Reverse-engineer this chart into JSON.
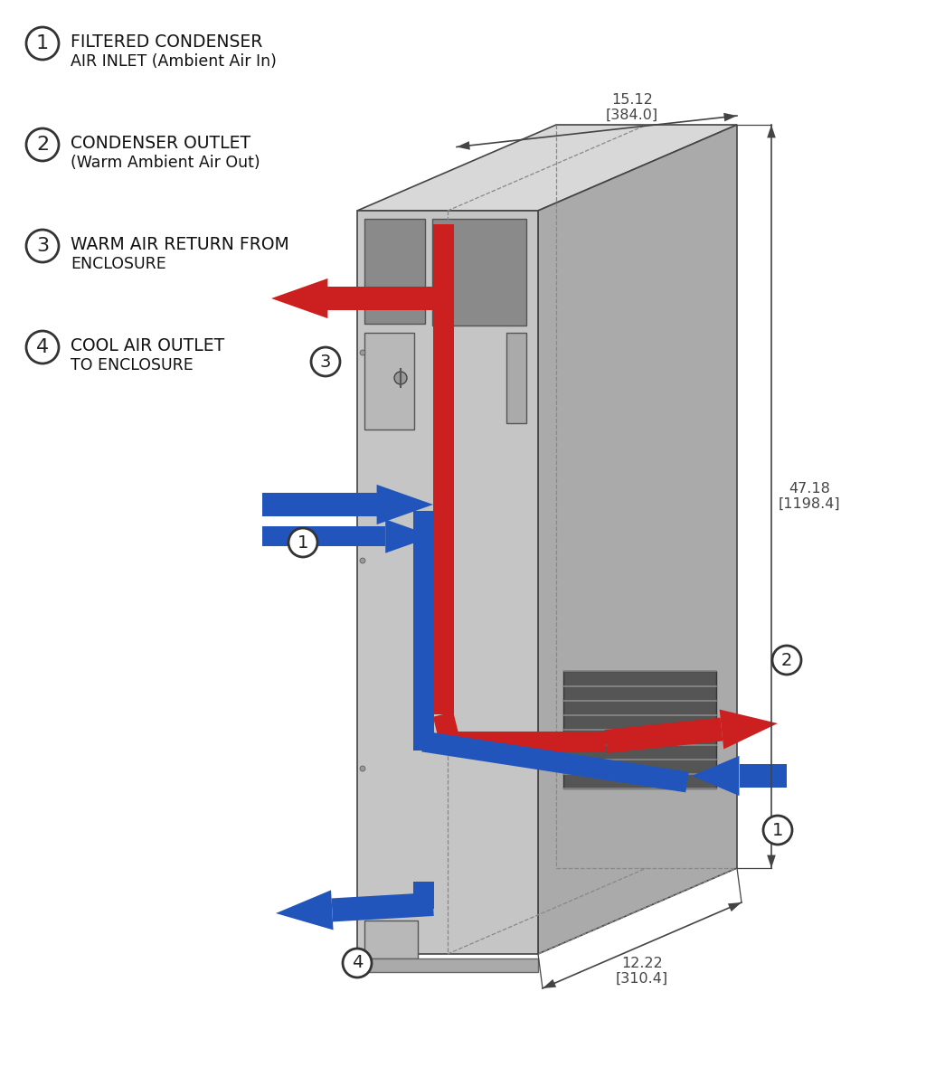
{
  "bg_color": "#ffffff",
  "text_color": "#222222",
  "legend": [
    {
      "num": "1",
      "line1": "FILTERED CONDENSER",
      "line2": "AIR INLET (Ambient Air In)"
    },
    {
      "num": "2",
      "line1": "CONDENSER OUTLET",
      "line2": "(Warm Ambient Air Out)"
    },
    {
      "num": "3",
      "line1": "WARM AIR RETURN FROM",
      "line2": "ENCLOSURE"
    },
    {
      "num": "4",
      "line1": "COOL AIR OUTLET",
      "line2": "TO ENCLOSURE"
    }
  ],
  "dim1": "15.12\n[384.0]",
  "dim2": "47.18\n[1198.4]",
  "dim3": "12.22\n[310.4]",
  "red": "#cc1f1f",
  "blue": "#2255bb",
  "enc_front": "#c5c5c5",
  "enc_side": "#aaaaaa",
  "enc_top": "#d8d8d8",
  "line_color": "#444444",
  "dashed_color": "#888888",
  "enc_panel_dark": "#8a8a8a",
  "enc_panel_mid": "#b8b8b8"
}
